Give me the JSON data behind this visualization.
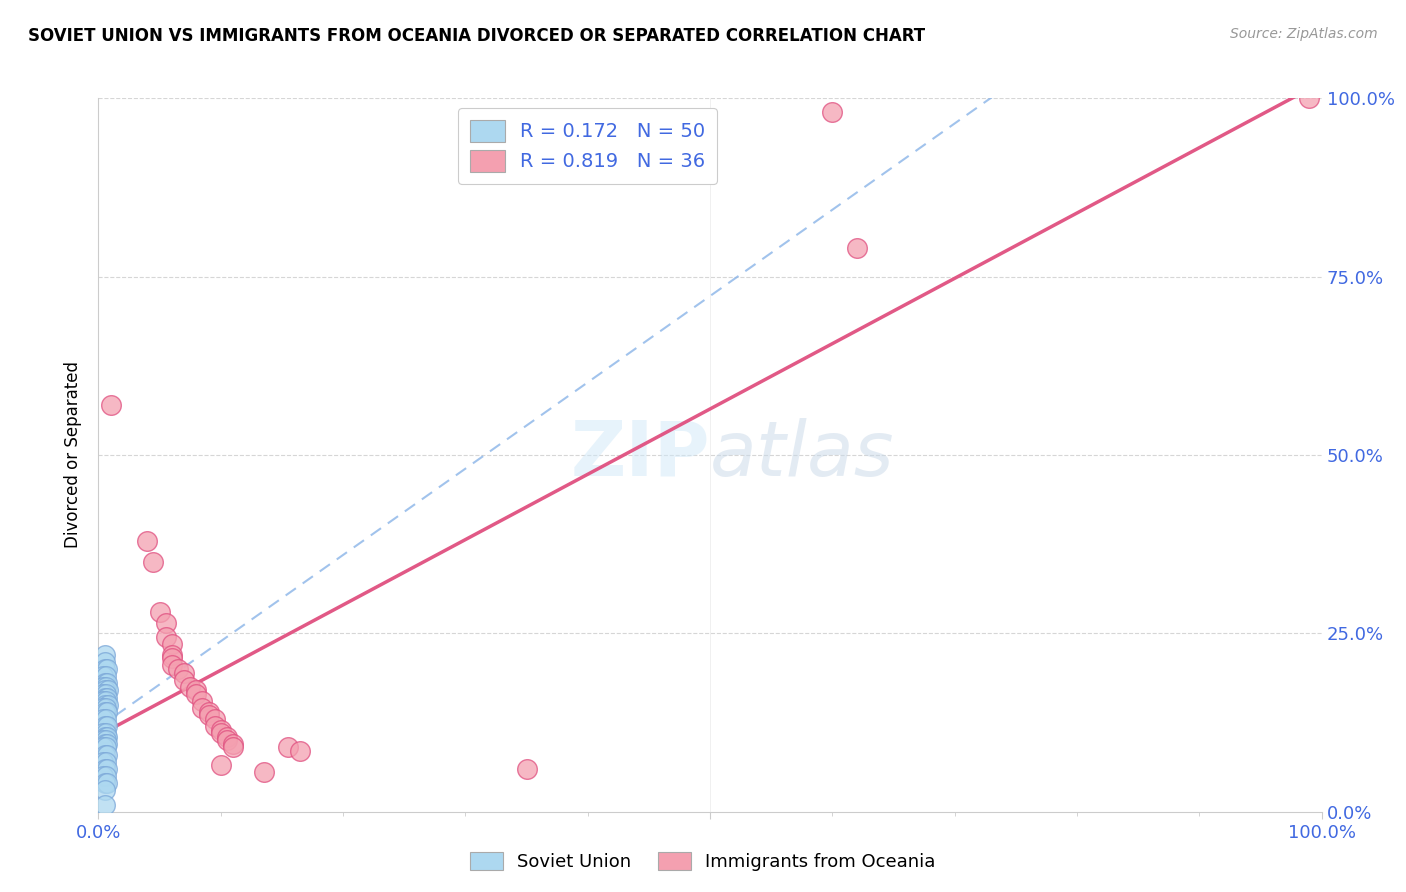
{
  "title": "SOVIET UNION VS IMMIGRANTS FROM OCEANIA DIVORCED OR SEPARATED CORRELATION CHART",
  "source": "Source: ZipAtlas.com",
  "ylabel": "Divorced or Separated",
  "blue_color": "#ADD8F0",
  "pink_color": "#F4A0B0",
  "blue_line_color": "#7BA7D8",
  "pink_line_color": "#E05080",
  "legend_text_color": "#4169E1",
  "soviet_R": 0.172,
  "soviet_N": 50,
  "oceania_R": 0.819,
  "oceania_N": 36,
  "soviet_points": [
    [
      0.005,
      0.22
    ],
    [
      0.005,
      0.21
    ],
    [
      0.005,
      0.2
    ],
    [
      0.007,
      0.2
    ],
    [
      0.004,
      0.19
    ],
    [
      0.006,
      0.19
    ],
    [
      0.005,
      0.18
    ],
    [
      0.007,
      0.18
    ],
    [
      0.004,
      0.175
    ],
    [
      0.006,
      0.175
    ],
    [
      0.005,
      0.17
    ],
    [
      0.008,
      0.17
    ],
    [
      0.004,
      0.165
    ],
    [
      0.006,
      0.165
    ],
    [
      0.005,
      0.16
    ],
    [
      0.007,
      0.16
    ],
    [
      0.004,
      0.155
    ],
    [
      0.006,
      0.155
    ],
    [
      0.005,
      0.15
    ],
    [
      0.008,
      0.15
    ],
    [
      0.004,
      0.145
    ],
    [
      0.006,
      0.145
    ],
    [
      0.005,
      0.14
    ],
    [
      0.007,
      0.14
    ],
    [
      0.004,
      0.13
    ],
    [
      0.006,
      0.13
    ],
    [
      0.005,
      0.12
    ],
    [
      0.007,
      0.12
    ],
    [
      0.004,
      0.11
    ],
    [
      0.006,
      0.11
    ],
    [
      0.005,
      0.105
    ],
    [
      0.007,
      0.105
    ],
    [
      0.004,
      0.1
    ],
    [
      0.006,
      0.1
    ],
    [
      0.005,
      0.095
    ],
    [
      0.007,
      0.095
    ],
    [
      0.004,
      0.09
    ],
    [
      0.006,
      0.09
    ],
    [
      0.005,
      0.08
    ],
    [
      0.007,
      0.08
    ],
    [
      0.004,
      0.07
    ],
    [
      0.006,
      0.07
    ],
    [
      0.005,
      0.06
    ],
    [
      0.007,
      0.06
    ],
    [
      0.004,
      0.05
    ],
    [
      0.006,
      0.05
    ],
    [
      0.005,
      0.04
    ],
    [
      0.007,
      0.04
    ],
    [
      0.005,
      0.03
    ],
    [
      0.005,
      0.01
    ]
  ],
  "oceania_points": [
    [
      0.01,
      0.57
    ],
    [
      0.04,
      0.38
    ],
    [
      0.045,
      0.35
    ],
    [
      0.05,
      0.28
    ],
    [
      0.055,
      0.265
    ],
    [
      0.055,
      0.245
    ],
    [
      0.06,
      0.235
    ],
    [
      0.06,
      0.22
    ],
    [
      0.06,
      0.215
    ],
    [
      0.06,
      0.205
    ],
    [
      0.065,
      0.2
    ],
    [
      0.07,
      0.195
    ],
    [
      0.07,
      0.185
    ],
    [
      0.075,
      0.175
    ],
    [
      0.08,
      0.17
    ],
    [
      0.08,
      0.165
    ],
    [
      0.085,
      0.155
    ],
    [
      0.085,
      0.145
    ],
    [
      0.09,
      0.14
    ],
    [
      0.09,
      0.135
    ],
    [
      0.095,
      0.13
    ],
    [
      0.095,
      0.12
    ],
    [
      0.1,
      0.115
    ],
    [
      0.1,
      0.11
    ],
    [
      0.105,
      0.105
    ],
    [
      0.105,
      0.1
    ],
    [
      0.11,
      0.095
    ],
    [
      0.11,
      0.09
    ],
    [
      0.155,
      0.09
    ],
    [
      0.165,
      0.085
    ],
    [
      0.35,
      0.06
    ],
    [
      0.1,
      0.065
    ],
    [
      0.135,
      0.055
    ],
    [
      0.62,
      0.79
    ],
    [
      0.6,
      0.98
    ],
    [
      0.99,
      1.0
    ]
  ]
}
